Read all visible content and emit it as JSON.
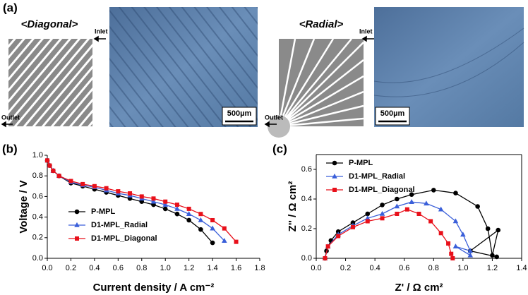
{
  "panel_a": {
    "label": "(a)",
    "diagonal": {
      "title": "<Diagonal>",
      "inlet": "Inlet",
      "outlet": "Outlet",
      "scale": "500µm"
    },
    "radial": {
      "title": "<Radial>",
      "inlet": "Inlet",
      "outlet": "Outlet",
      "scale": "500µm"
    }
  },
  "chart_data": [
    {
      "type": "line",
      "label": "(b)",
      "x_label": "Current density / A cm⁻²",
      "y_label": "Voltage / V",
      "x": [
        0,
        0.02,
        0.05,
        0.1,
        0.2,
        0.3,
        0.4,
        0.5,
        0.6,
        0.7,
        0.8,
        0.9,
        1.0,
        1.1,
        1.2,
        1.3,
        1.4,
        1.5,
        1.6
      ],
      "series": [
        {
          "name": "P-MPL",
          "color": "#000000",
          "marker": "circle",
          "values": [
            0.95,
            0.9,
            0.85,
            0.8,
            0.73,
            0.7,
            0.67,
            0.64,
            0.61,
            0.58,
            0.55,
            0.52,
            0.48,
            0.43,
            0.37,
            0.28,
            0.15,
            null,
            null
          ]
        },
        {
          "name": "D1-MPL_Radial",
          "color": "#3a5fd9",
          "marker": "triangle",
          "values": [
            0.95,
            0.9,
            0.85,
            0.8,
            0.74,
            0.71,
            0.69,
            0.66,
            0.63,
            0.61,
            0.58,
            0.55,
            0.52,
            0.48,
            0.43,
            0.37,
            0.29,
            0.17,
            null
          ]
        },
        {
          "name": "D1-MPL_Diagonal",
          "color": "#e8101a",
          "marker": "square",
          "values": [
            0.95,
            0.9,
            0.85,
            0.8,
            0.75,
            0.72,
            0.7,
            0.68,
            0.65,
            0.63,
            0.6,
            0.58,
            0.55,
            0.52,
            0.48,
            0.43,
            0.37,
            0.29,
            0.16
          ]
        }
      ],
      "xlim": [
        0,
        1.8
      ],
      "ylim": [
        0,
        1.0
      ],
      "xticks": [
        {
          "value": 0,
          "label": "0.0"
        },
        {
          "value": 0.2,
          "label": "0.2"
        },
        {
          "value": 0.4,
          "label": "0.4"
        },
        {
          "value": 0.6,
          "label": "0.6"
        },
        {
          "value": 0.8,
          "label": "0.8"
        },
        {
          "value": 1.0,
          "label": "1.0"
        },
        {
          "value": 1.2,
          "label": "1.2"
        },
        {
          "value": 1.4,
          "label": "1.4"
        },
        {
          "value": 1.6,
          "label": "1.6"
        },
        {
          "value": 1.8,
          "label": "1.8"
        }
      ],
      "yticks": [
        {
          "value": 0,
          "label": "0.0"
        },
        {
          "value": 0.2,
          "label": "0.2"
        },
        {
          "value": 0.4,
          "label": "0.4"
        },
        {
          "value": 0.6,
          "label": "0.6"
        },
        {
          "value": 0.8,
          "label": "0.8"
        },
        {
          "value": 1.0,
          "label": "1.0"
        }
      ],
      "legend": "lower-left"
    },
    {
      "type": "scatter-line",
      "label": "(c)",
      "x_label": "Z' / Ω cm²",
      "y_label": "Z'' / Ω cm²",
      "series": [
        {
          "name": "P-MPL",
          "color": "#000000",
          "marker": "circle",
          "x": [
            0.06,
            0.07,
            0.1,
            0.15,
            0.25,
            0.35,
            0.45,
            0.55,
            0.65,
            0.8,
            0.95,
            1.1,
            1.17,
            1.2,
            1.24,
            1.05,
            1.23
          ],
          "values": [
            0,
            0.05,
            0.12,
            0.18,
            0.24,
            0.3,
            0.36,
            0.4,
            0.43,
            0.46,
            0.44,
            0.35,
            0.2,
            0.02,
            0.19,
            0.05,
            0.01
          ]
        },
        {
          "name": "D1-MPL_Radial",
          "color": "#3a5fd9",
          "marker": "triangle",
          "x": [
            0.06,
            0.08,
            0.15,
            0.25,
            0.35,
            0.45,
            0.55,
            0.65,
            0.75,
            0.85,
            0.95,
            1.0,
            1.05,
            0.95,
            1.05
          ],
          "values": [
            0,
            0.08,
            0.16,
            0.22,
            0.27,
            0.3,
            0.35,
            0.38,
            0.37,
            0.33,
            0.25,
            0.16,
            0.05,
            0.08,
            0.02
          ]
        },
        {
          "name": "D1-MPL_Diagonal",
          "color": "#e8101a",
          "marker": "square",
          "x": [
            0.06,
            0.08,
            0.15,
            0.25,
            0.35,
            0.45,
            0.55,
            0.62,
            0.7,
            0.78,
            0.85,
            0.9,
            0.92,
            0.93
          ],
          "values": [
            0,
            0.08,
            0.15,
            0.21,
            0.25,
            0.27,
            0.3,
            0.33,
            0.3,
            0.25,
            0.17,
            0.1,
            0.03,
            0
          ]
        }
      ],
      "xlim": [
        0,
        1.4
      ],
      "ylim": [
        0,
        0.7
      ],
      "xticks": [
        {
          "value": 0,
          "label": "0.0"
        },
        {
          "value": 0.2,
          "label": "0.2"
        },
        {
          "value": 0.4,
          "label": "0.4"
        },
        {
          "value": 0.6,
          "label": "0.6"
        },
        {
          "value": 0.8,
          "label": "0.8"
        },
        {
          "value": 1.0,
          "label": "1.0"
        },
        {
          "value": 1.2,
          "label": "1.2"
        },
        {
          "value": 1.4,
          "label": "1.4"
        }
      ],
      "yticks": [
        {
          "value": 0,
          "label": "0.0"
        },
        {
          "value": 0.2,
          "label": "0.2"
        },
        {
          "value": 0.4,
          "label": "0.4"
        },
        {
          "value": 0.6,
          "label": "0.6"
        }
      ],
      "legend": "upper-left"
    }
  ]
}
